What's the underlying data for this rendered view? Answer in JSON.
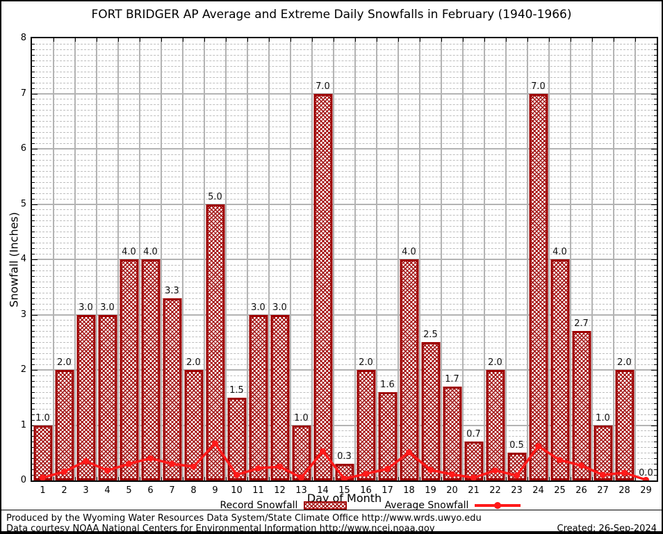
{
  "chart_data": {
    "type": "bar",
    "title": "FORT BRIDGER AP Average and Extreme Daily Snowfalls in February (1940-1966)",
    "xlabel": "Day of Month",
    "ylabel": "Snowfall (Inches)",
    "ylim": [
      0,
      8
    ],
    "ytick_step": 1,
    "minor_ytick_step": 0.1,
    "grid": {
      "major": "solid",
      "minor": "dashed",
      "vertical": "solid-at-day-boundaries"
    },
    "legend_position": "bottom",
    "categories": [
      1,
      2,
      3,
      4,
      5,
      6,
      7,
      8,
      9,
      10,
      11,
      12,
      13,
      14,
      15,
      16,
      17,
      18,
      19,
      20,
      21,
      22,
      23,
      24,
      25,
      26,
      27,
      28,
      29
    ],
    "series": [
      {
        "name": "Record Snowfall",
        "type": "bar",
        "color": "#9e0000",
        "values": [
          1.0,
          2.0,
          3.0,
          3.0,
          4.0,
          4.0,
          3.3,
          2.0,
          5.0,
          1.5,
          3.0,
          3.0,
          1.0,
          7.0,
          0.3,
          2.0,
          1.6,
          4.0,
          2.5,
          1.7,
          0.7,
          2.0,
          0.5,
          7.0,
          4.0,
          2.7,
          1.0,
          2.0,
          0.0
        ],
        "data_labels": [
          "1.0",
          "2.0",
          "3.0",
          "3.0",
          "4.0",
          "4.0",
          "3.3",
          "2.0",
          "5.0",
          "1.5",
          "3.0",
          "3.0",
          "1.0",
          "7.0",
          "0.3",
          "2.0",
          "1.6",
          "4.0",
          "2.5",
          "1.7",
          "0.7",
          "2.0",
          "0.5",
          "7.0",
          "4.0",
          "2.7",
          "1.0",
          "2.0",
          "0.0"
        ]
      },
      {
        "name": "Average Snowfall",
        "type": "line",
        "color": "#ff1a1a",
        "values": [
          0.05,
          0.16,
          0.35,
          0.18,
          0.3,
          0.4,
          0.3,
          0.25,
          0.67,
          0.1,
          0.22,
          0.25,
          0.05,
          0.53,
          0.03,
          0.12,
          0.21,
          0.51,
          0.19,
          0.11,
          0.05,
          0.18,
          0.09,
          0.62,
          0.37,
          0.27,
          0.1,
          0.14,
          0.01
        ]
      }
    ]
  },
  "legend": {
    "record_label": "Record Snowfall",
    "average_label": "Average Snowfall"
  },
  "footer": {
    "line1": "Produced by the Wyoming Water Resources Data System/State Climate Office http://www.wrds.uwyo.edu",
    "line2": "Data courtesy NOAA National Centers for Environmental Information http://www.ncei.noaa.gov",
    "created": "Created: 26-Sep-2024"
  },
  "colors": {
    "bar": "#9e0000",
    "line": "#ff1a1a",
    "grid_major": "#b3b3b3",
    "grid_minor": "#bdbdbd",
    "frame": "#000000"
  }
}
